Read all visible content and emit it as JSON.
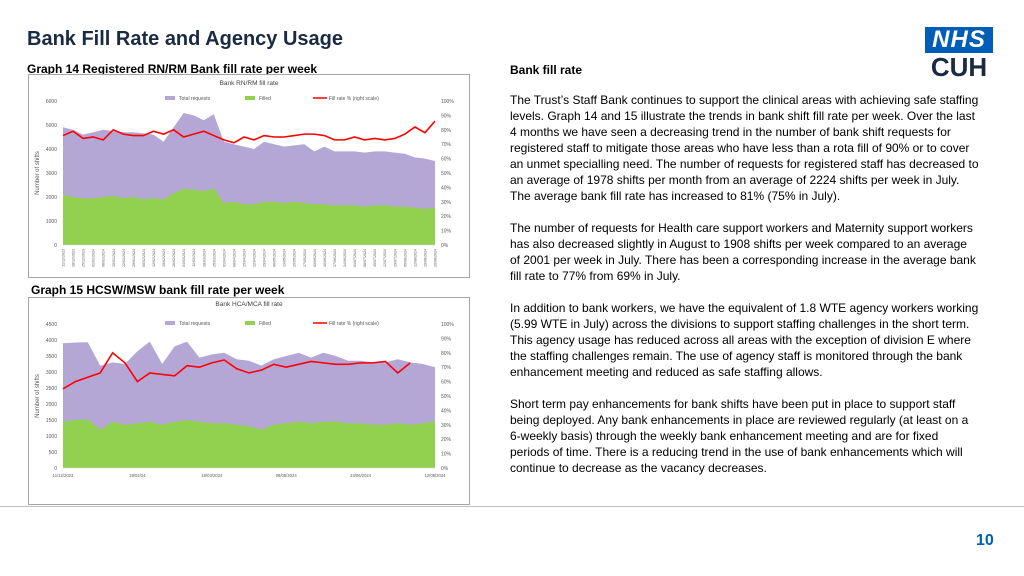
{
  "title": "Bank Fill Rate and Agency Usage",
  "logo": {
    "top": "NHS",
    "bottom": "CUH"
  },
  "graph14_caption": "Graph 14 Registered RN/RM Bank fill rate per week",
  "graph15_caption": "Graph 15 HCSW/MSW bank fill rate per week",
  "right": {
    "heading": "Bank fill rate",
    "p1": "The Trust’s Staff Bank continues to support the clinical areas with achieving safe staffing levels. Graph 14 and 15 illustrate the trends in bank shift fill rate per week. Over the last 4 months we have seen a decreasing trend in the number of bank shift requests for registered staff to mitigate those areas who have less than a rota fill of 90% or to cover an unmet specialling need. The number of requests for registered staff has decreased to an average of 1978 shifts per month from an average of 2224 shifts per week in July. The average bank fill rate has increased to 81% (75% in July).",
    "p2": "The number of requests for Health care support workers and Maternity support workers has also decreased slightly in August to 1908 shifts per week compared to an average of 2001 per week in July. There has been a corresponding increase in the average bank fill rate to 77% from 69% in July.",
    "p3": "In addition to bank workers, we have the equivalent of 1.8 WTE agency workers working (5.99 WTE in July) across the divisions to support staffing challenges in the short term. This agency usage has reduced across all areas with the exception of division E where the staffing challenges remain. The use of agency staff is monitored through the bank enhancement meeting and reduced as safe staffing allows.",
    "p4": "Short term pay enhancements for bank shifts have been put in place to support staff being deployed. Any bank enhancements in place are reviewed regularly (at least on a 6-weekly basis) through the weekly bank enhancement meeting and are for fixed periods of time. There is a reducing trend in the use of bank enhancements which will continue to decrease as the vacancy decreases."
  },
  "page_number": "10",
  "colors": {
    "requests": "#b4a7d6",
    "filled": "#92d050",
    "rate": "#ff0000",
    "nhs_blue": "#005eb8"
  },
  "chart_data": [
    {
      "type": "area",
      "title": "Bank RN/RM fill rate",
      "ylabel": "Number of shifts",
      "ylim": [
        0,
        6000
      ],
      "y_ticks": [
        "0",
        "1000",
        "2000",
        "3000",
        "4000",
        "5000",
        "6000"
      ],
      "y2_ticks": [
        "0%",
        "10%",
        "20%",
        "30%",
        "40%",
        "50%",
        "60%",
        "70%",
        "80%",
        "90%",
        "100%"
      ],
      "y2lim": [
        0,
        100
      ],
      "legend": [
        "Total requests",
        "Filled",
        "Fill rate % (right scale)"
      ],
      "x": [
        "11/12/2023",
        "18/12/2023",
        "25/12/2023",
        "01/01/2024",
        "08/01/2024",
        "15/01/2024",
        "22/01/2024",
        "29/01/2024",
        "05/02/2024",
        "12/02/2024",
        "19/02/2024",
        "26/02/2024",
        "04/03/2024",
        "11/03/2024",
        "18/03/2024",
        "25/03/2024",
        "01/04/2024",
        "08/04/2024",
        "15/04/2024",
        "22/04/2024",
        "29/04/2024",
        "06/05/2024",
        "13/05/2024",
        "20/05/2024",
        "27/05/2024",
        "03/06/2024",
        "10/06/2024",
        "17/06/2024",
        "24/06/2024",
        "01/07/2024",
        "08/07/2024",
        "15/07/2024",
        "22/07/2024",
        "29/07/2024",
        "05/08/2024",
        "12/08/2024",
        "19/08/2024",
        "26/08/2024"
      ],
      "series": [
        {
          "name": "Total requests",
          "values": [
            4900,
            4800,
            4600,
            4700,
            4800,
            4750,
            4700,
            4700,
            4650,
            4600,
            4300,
            4900,
            5500,
            5400,
            5200,
            5450,
            4300,
            4200,
            4100,
            4000,
            4300,
            4200,
            4100,
            4150,
            4200,
            3900,
            4100,
            3900,
            3900,
            3900,
            3850,
            3900,
            3900,
            3850,
            3800,
            3650,
            3600,
            3500
          ]
        },
        {
          "name": "Filled",
          "values": [
            2100,
            2000,
            1950,
            1950,
            2000,
            2050,
            1950,
            2000,
            1900,
            1950,
            1900,
            2150,
            2350,
            2300,
            2250,
            2350,
            1750,
            1800,
            1700,
            1700,
            1800,
            1800,
            1750,
            1800,
            1750,
            1700,
            1700,
            1650,
            1650,
            1650,
            1600,
            1650,
            1650,
            1600,
            1600,
            1550,
            1500,
            1550
          ]
        },
        {
          "name": "Fill rate % (right scale)",
          "values": [
            76,
            79,
            74,
            75,
            73,
            80,
            77,
            76,
            76,
            79,
            77,
            80,
            75,
            77,
            79,
            76,
            73,
            71,
            75,
            73,
            76,
            75,
            75,
            76,
            77,
            77,
            76,
            73,
            73,
            75,
            73,
            74,
            73,
            74,
            77,
            82,
            78,
            86
          ]
        }
      ]
    },
    {
      "type": "area",
      "title": "Bank HCA/MCA fill rate",
      "ylabel": "Number of shifts",
      "ylim": [
        0,
        4500
      ],
      "y_ticks": [
        "0",
        "500",
        "1000",
        "1500",
        "2000",
        "2500",
        "3000",
        "3500",
        "4000",
        "4500"
      ],
      "y2_ticks": [
        "0%",
        "10%",
        "20%",
        "30%",
        "40%",
        "50%",
        "60%",
        "70%",
        "80%",
        "90%",
        "100%"
      ],
      "y2lim": [
        0,
        100
      ],
      "legend": [
        "Total requests",
        "Filled",
        "Fill rate % (right scale)"
      ],
      "x_tick_labels": [
        "11/12/2023",
        "29/02/24",
        "18/03/2024",
        "08/05/2024",
        "24/06/2024",
        "12/08/2024"
      ],
      "series": [
        {
          "name": "Total requests",
          "values": [
            3900,
            3920,
            3930,
            3200,
            3300,
            3250,
            3650,
            3950,
            3250,
            3800,
            3950,
            3450,
            3550,
            3600,
            3400,
            3350,
            3200,
            3400,
            3500,
            3600,
            3450,
            3600,
            3500,
            3350,
            3350,
            3300,
            3300,
            3400,
            3300,
            3250,
            3150
          ]
        },
        {
          "name": "Filled",
          "values": [
            1450,
            1500,
            1520,
            1200,
            1450,
            1350,
            1400,
            1450,
            1350,
            1450,
            1500,
            1450,
            1400,
            1400,
            1350,
            1300,
            1200,
            1350,
            1400,
            1450,
            1400,
            1450,
            1450,
            1400,
            1400,
            1350,
            1350,
            1400,
            1350,
            1400,
            1450
          ]
        },
        {
          "name": "Fill rate % (right scale)",
          "values": [
            55,
            60,
            63,
            66,
            80,
            73,
            60,
            66,
            65,
            64,
            71,
            70,
            73,
            75,
            69,
            66,
            68,
            72,
            70,
            72,
            74,
            73,
            72,
            72,
            73,
            73,
            74,
            66,
            73,
            null,
            null
          ]
        }
      ]
    }
  ]
}
